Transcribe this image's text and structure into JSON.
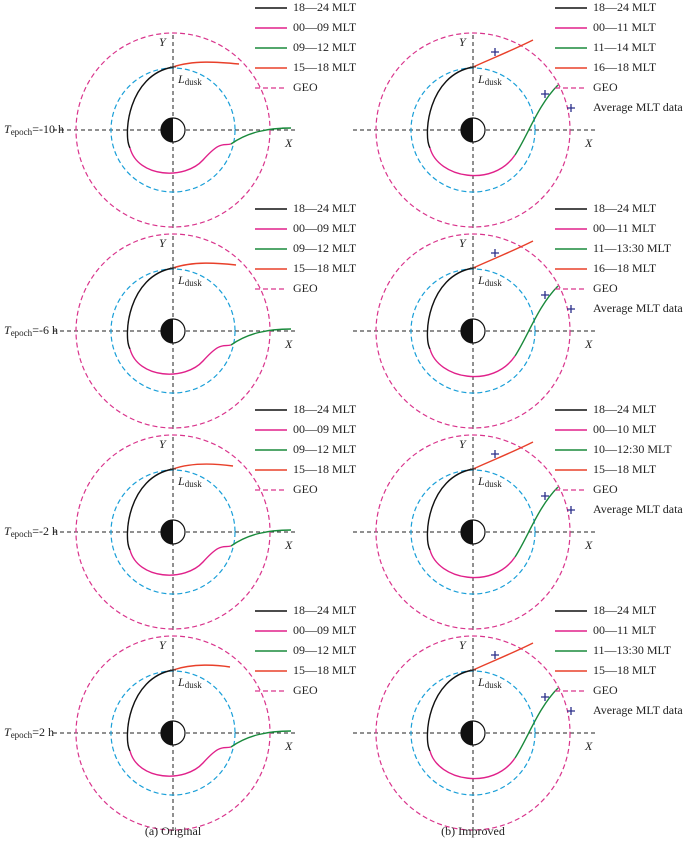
{
  "axis_labels": {
    "x": "X",
    "y": "Y"
  },
  "dusk_label": {
    "symbol": "L",
    "subscript": "dusk"
  },
  "rows": [
    {
      "row_label": {
        "symbol": "T",
        "subscript": "epoch",
        "text": "=-10 h"
      },
      "original": [
        "18—24 MLT",
        "00—09 MLT",
        "09—12 MLT",
        "15—18 MLT",
        "GEO"
      ],
      "improved": [
        "18—24 MLT",
        "00—11 MLT",
        "11—14 MLT",
        "16—18 MLT",
        "GEO",
        "Average MLT data"
      ]
    },
    {
      "row_label": {
        "symbol": "T",
        "subscript": "epoch",
        "text": "=-6 h"
      },
      "original": [
        "18—24 MLT",
        "00—09 MLT",
        "09—12 MLT",
        "15—18 MLT",
        "GEO"
      ],
      "improved": [
        "18—24 MLT",
        "00—11 MLT",
        "11—13:30 MLT",
        "16—18 MLT",
        "GEO",
        "Average MLT data"
      ]
    },
    {
      "row_label": {
        "symbol": "T",
        "subscript": "epoch",
        "text": "=-2 h"
      },
      "original": [
        "18—24 MLT",
        "00—09 MLT",
        "09—12 MLT",
        "15—18 MLT",
        "GEO"
      ],
      "improved": [
        "18—24 MLT",
        "00—10 MLT",
        "10—12:30 MLT",
        "15—18 MLT",
        "GEO",
        "Average MLT data"
      ]
    },
    {
      "row_label": {
        "symbol": "T",
        "subscript": "epoch",
        "text": "=2 h"
      },
      "original": [
        "18—24 MLT",
        "00—09 MLT",
        "09—12 MLT",
        "15—18 MLT",
        "GEO"
      ],
      "improved": [
        "18—24 MLT",
        "00—11 MLT",
        "11—13:30 MLT",
        "15—18 MLT",
        "GEO",
        "Average MLT data"
      ]
    }
  ],
  "captions": [
    "(a) Original",
    "(b) Improved"
  ]
}
